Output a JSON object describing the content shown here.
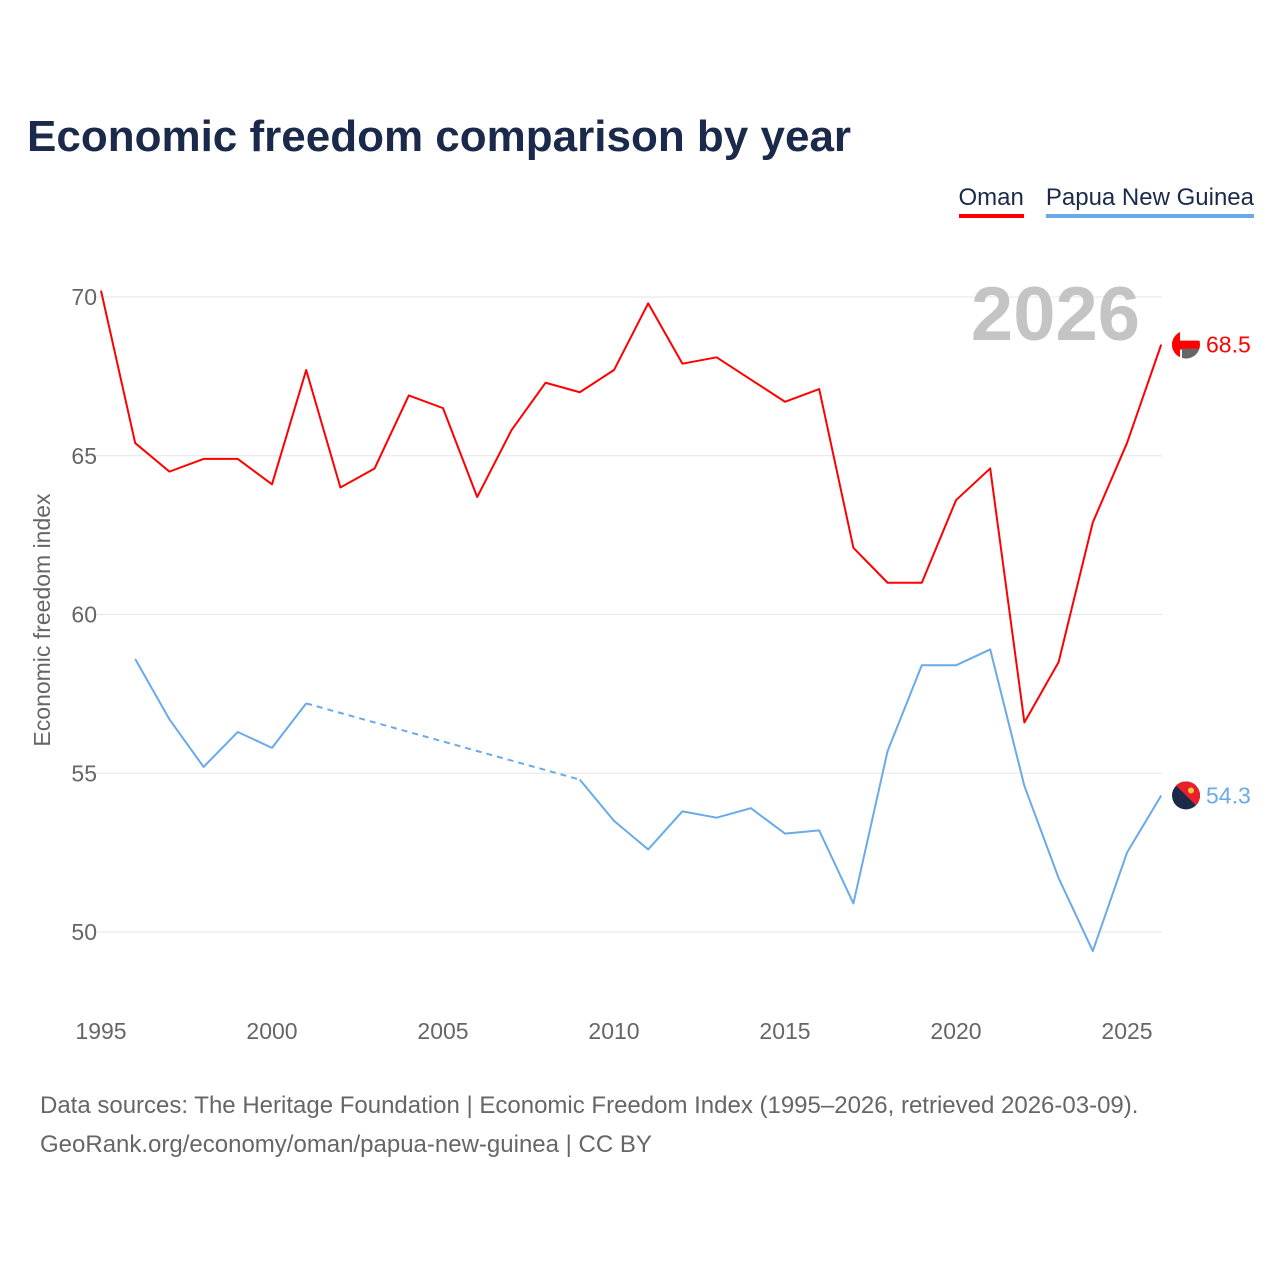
{
  "title": "Economic freedom comparison by year",
  "footer": {
    "line1": "Data sources: The Heritage Foundation | Economic Freedom Index (1995–2026, retrieved 2026-03-09).",
    "line2": "GeoRank.org/economy/oman/papua-new-guinea | CC BY"
  },
  "chart_data": {
    "type": "line",
    "title": "Economic freedom comparison by year",
    "xlabel": "",
    "ylabel": "Economic freedom index",
    "watermark_year": "2026",
    "xlim": [
      1995,
      2026
    ],
    "ylim": [
      48,
      71
    ],
    "xticks": [
      "1995",
      "2000",
      "2005",
      "2010",
      "2015",
      "2020",
      "2025"
    ],
    "yticks": [
      "50",
      "55",
      "60",
      "65",
      "70"
    ],
    "grid": true,
    "legend": "top-right",
    "x": [
      1995,
      1996,
      1997,
      1998,
      1999,
      2000,
      2001,
      2002,
      2003,
      2004,
      2005,
      2006,
      2007,
      2008,
      2009,
      2010,
      2011,
      2012,
      2013,
      2014,
      2015,
      2016,
      2017,
      2018,
      2019,
      2020,
      2021,
      2022,
      2023,
      2024,
      2025,
      2026
    ],
    "series": [
      {
        "name": "Oman",
        "color": "#ff0000",
        "end_label": "68.5",
        "values": [
          70.2,
          65.4,
          64.5,
          64.9,
          64.9,
          64.1,
          67.7,
          64.0,
          64.6,
          66.9,
          66.5,
          63.7,
          65.8,
          67.3,
          67.0,
          67.7,
          69.8,
          67.9,
          68.1,
          67.4,
          66.7,
          67.1,
          62.1,
          61.0,
          61.0,
          63.6,
          64.6,
          56.6,
          58.5,
          62.9,
          65.4,
          68.5
        ]
      },
      {
        "name": "Papua New Guinea",
        "color": "#6aaae8",
        "end_label": "54.3",
        "values": [
          null,
          58.6,
          56.7,
          55.2,
          56.3,
          55.8,
          57.2,
          null,
          null,
          null,
          null,
          null,
          null,
          null,
          54.8,
          53.5,
          52.6,
          53.8,
          53.6,
          53.9,
          53.1,
          53.2,
          50.9,
          55.7,
          58.4,
          58.4,
          58.9,
          54.6,
          51.7,
          49.4,
          52.5,
          54.3
        ]
      }
    ]
  }
}
